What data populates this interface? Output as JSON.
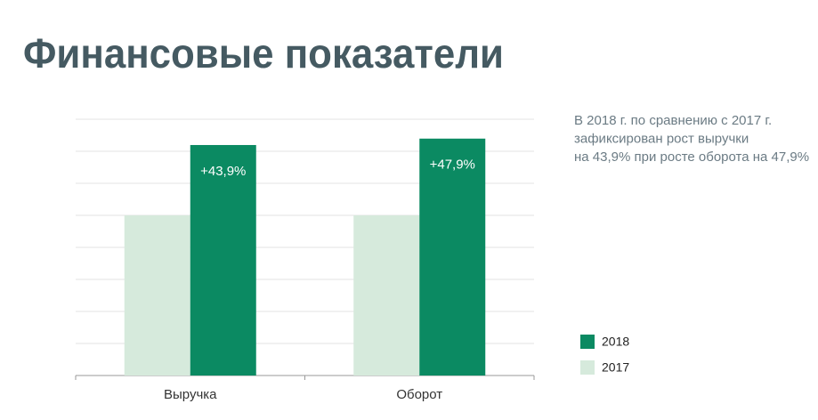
{
  "chart_data": {
    "type": "bar",
    "title": "Финансовые показатели",
    "note": [
      "В 2018 г. по сравнению с 2017 г.",
      "зафиксирован рост выручки",
      "на 43,9% при росте оборота на 47,9%"
    ],
    "categories": [
      "Выручка",
      "Оборот"
    ],
    "series": [
      {
        "name": "2017",
        "color": "#d6eadc",
        "values": [
          100,
          100
        ]
      },
      {
        "name": "2018",
        "color": "#0b8a62",
        "values": [
          143.9,
          147.9
        ]
      }
    ],
    "annotations": [
      "+43,9%",
      "+47,9%"
    ],
    "ylim": [
      0,
      160
    ],
    "yticks": [
      20,
      40,
      60,
      80,
      100,
      120,
      140,
      160
    ],
    "grid": true,
    "legend": "bottom-right"
  }
}
